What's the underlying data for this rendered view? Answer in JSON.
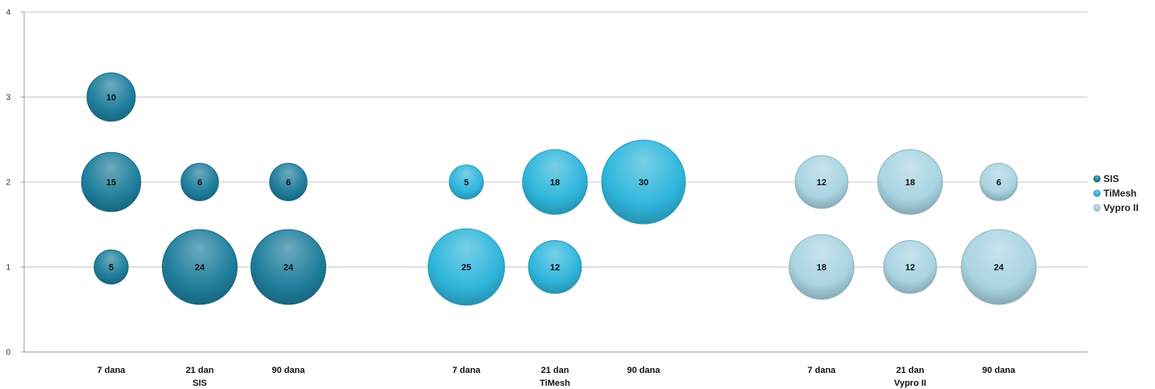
{
  "chart_data": {
    "type": "bubble",
    "title": "",
    "xlabel": "",
    "ylabel": "",
    "ylim": [
      0,
      4
    ],
    "y_ticks": [
      0,
      1,
      2,
      3,
      4
    ],
    "grid": true,
    "legend_position": "right",
    "groups": [
      {
        "name": "SIS",
        "categories": [
          "7 dana",
          "21 dan",
          "90 dana"
        ]
      },
      {
        "name": "TiMesh",
        "categories": [
          "7 dana",
          "21 dan",
          "90 dana"
        ]
      },
      {
        "name": "Vypro II",
        "categories": [
          "7 dana",
          "21 dan",
          "90 dana"
        ]
      }
    ],
    "series": [
      {
        "name": "SIS",
        "color": "#1f7e9c",
        "points": [
          {
            "category": "7 dana",
            "y": 3,
            "size": 10
          },
          {
            "category": "7 dana",
            "y": 2,
            "size": 15
          },
          {
            "category": "7 dana",
            "y": 1,
            "size": 5
          },
          {
            "category": "21 dan",
            "y": 2,
            "size": 6
          },
          {
            "category": "21 dan",
            "y": 1,
            "size": 24
          },
          {
            "category": "90 dana",
            "y": 2,
            "size": 6
          },
          {
            "category": "90 dana",
            "y": 1,
            "size": 24
          }
        ]
      },
      {
        "name": "TiMesh",
        "color": "#2fb6dc",
        "points": [
          {
            "category": "7 dana",
            "y": 2,
            "size": 5
          },
          {
            "category": "7 dana",
            "y": 1,
            "size": 25
          },
          {
            "category": "21 dan",
            "y": 2,
            "size": 18
          },
          {
            "category": "21 dan",
            "y": 1,
            "size": 12
          },
          {
            "category": "90 dana",
            "y": 2,
            "size": 30
          }
        ]
      },
      {
        "name": "Vypro II",
        "color": "#a9d4e2",
        "points": [
          {
            "category": "7 dana",
            "y": 2,
            "size": 12
          },
          {
            "category": "7 dana",
            "y": 1,
            "size": 18
          },
          {
            "category": "21 dan",
            "y": 2,
            "size": 18
          },
          {
            "category": "21 dan",
            "y": 1,
            "size": 12
          },
          {
            "category": "90 dana",
            "y": 2,
            "size": 6
          },
          {
            "category": "90 dana",
            "y": 1,
            "size": 24
          }
        ]
      }
    ]
  }
}
